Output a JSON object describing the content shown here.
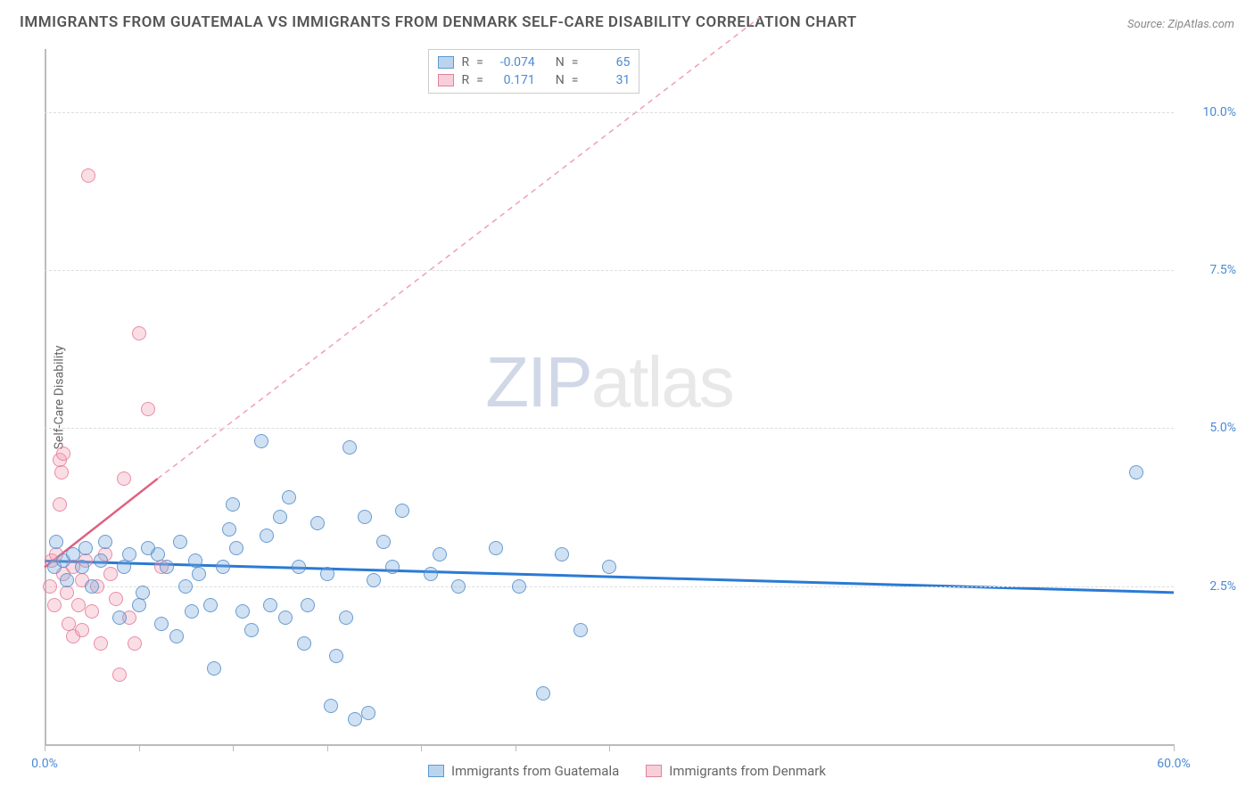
{
  "title": "IMMIGRANTS FROM GUATEMALA VS IMMIGRANTS FROM DENMARK SELF-CARE DISABILITY CORRELATION CHART",
  "source_label": "Source: ZipAtlas.com",
  "ylabel": "Self-Care Disability",
  "watermark_zip": "ZIP",
  "watermark_atlas": "atlas",
  "chart": {
    "type": "scatter",
    "xlim": [
      0,
      60
    ],
    "ylim": [
      0,
      11
    ],
    "ytick_values": [
      2.5,
      5.0,
      7.5,
      10.0
    ],
    "ytick_labels": [
      "2.5%",
      "5.0%",
      "7.5%",
      "10.0%"
    ],
    "xtick_positions": [
      0,
      5,
      10,
      15,
      20,
      25,
      30,
      60
    ],
    "xtick_labels": {
      "0": "0.0%",
      "60": "60.0%"
    },
    "background_color": "#ffffff",
    "grid_color": "#dddddd",
    "marker_size": 16
  },
  "series": {
    "guatemala": {
      "label": "Immigrants from Guatemala",
      "color_fill": "rgba(120,170,220,0.35)",
      "color_stroke": "#5a9ad4",
      "r_value": "-0.074",
      "n_value": "65",
      "trend": {
        "x1": 0,
        "y1": 2.9,
        "x2": 60,
        "y2": 2.4,
        "dashed": false,
        "color": "#2a7ad4",
        "width": 3
      },
      "points": [
        [
          0.5,
          2.8
        ],
        [
          0.6,
          3.2
        ],
        [
          1.0,
          2.9
        ],
        [
          1.2,
          2.6
        ],
        [
          1.5,
          3.0
        ],
        [
          2.0,
          2.8
        ],
        [
          2.2,
          3.1
        ],
        [
          2.5,
          2.5
        ],
        [
          3.0,
          2.9
        ],
        [
          3.2,
          3.2
        ],
        [
          4.0,
          2.0
        ],
        [
          4.2,
          2.8
        ],
        [
          5.0,
          2.2
        ],
        [
          5.5,
          3.1
        ],
        [
          6.0,
          3.0
        ],
        [
          6.5,
          2.8
        ],
        [
          7.0,
          1.7
        ],
        [
          7.2,
          3.2
        ],
        [
          7.8,
          2.1
        ],
        [
          8.0,
          2.9
        ],
        [
          8.2,
          2.7
        ],
        [
          8.8,
          2.2
        ],
        [
          9.0,
          1.2
        ],
        [
          9.5,
          2.8
        ],
        [
          10.0,
          3.8
        ],
        [
          10.2,
          3.1
        ],
        [
          10.5,
          2.1
        ],
        [
          11.0,
          1.8
        ],
        [
          11.5,
          4.8
        ],
        [
          12.0,
          2.2
        ],
        [
          12.5,
          3.6
        ],
        [
          12.8,
          2.0
        ],
        [
          13.0,
          3.9
        ],
        [
          13.5,
          2.8
        ],
        [
          14.0,
          2.2
        ],
        [
          14.5,
          3.5
        ],
        [
          15.0,
          2.7
        ],
        [
          15.2,
          0.6
        ],
        [
          15.5,
          1.4
        ],
        [
          16.0,
          2.0
        ],
        [
          16.2,
          4.7
        ],
        [
          16.5,
          0.4
        ],
        [
          17.0,
          3.6
        ],
        [
          17.2,
          0.5
        ],
        [
          17.5,
          2.6
        ],
        [
          18.0,
          3.2
        ],
        [
          18.5,
          2.8
        ],
        [
          19.0,
          3.7
        ],
        [
          20.5,
          2.7
        ],
        [
          21.0,
          3.0
        ],
        [
          22.0,
          2.5
        ],
        [
          24.0,
          3.1
        ],
        [
          25.2,
          2.5
        ],
        [
          26.5,
          0.8
        ],
        [
          27.5,
          3.0
        ],
        [
          28.5,
          1.8
        ],
        [
          30.0,
          2.8
        ],
        [
          58.0,
          4.3
        ],
        [
          5.2,
          2.4
        ],
        [
          6.2,
          1.9
        ],
        [
          9.8,
          3.4
        ],
        [
          11.8,
          3.3
        ],
        [
          13.8,
          1.6
        ],
        [
          7.5,
          2.5
        ],
        [
          4.5,
          3.0
        ]
      ]
    },
    "denmark": {
      "label": "Immigrants from Denmark",
      "color_fill": "rgba(240,160,180,0.35)",
      "color_stroke": "#e080a0",
      "r_value": "0.171",
      "n_value": "31",
      "trend_solid": {
        "x1": 0,
        "y1": 2.8,
        "x2": 6.0,
        "y2": 4.2,
        "color": "#e0607f",
        "width": 2.5
      },
      "trend_dashed": {
        "x1": 6.0,
        "y1": 4.2,
        "x2": 38,
        "y2": 11.5,
        "color": "#f0a0b0",
        "width": 1.5
      },
      "points": [
        [
          0.3,
          2.5
        ],
        [
          0.4,
          2.9
        ],
        [
          0.5,
          2.2
        ],
        [
          0.6,
          3.0
        ],
        [
          0.8,
          3.8
        ],
        [
          0.8,
          4.5
        ],
        [
          0.9,
          4.3
        ],
        [
          1.0,
          2.7
        ],
        [
          1.0,
          4.6
        ],
        [
          1.2,
          2.4
        ],
        [
          1.3,
          1.9
        ],
        [
          1.5,
          2.8
        ],
        [
          1.5,
          1.7
        ],
        [
          1.8,
          2.2
        ],
        [
          2.0,
          2.6
        ],
        [
          2.0,
          1.8
        ],
        [
          2.2,
          2.9
        ],
        [
          2.3,
          9.0
        ],
        [
          2.5,
          2.1
        ],
        [
          2.8,
          2.5
        ],
        [
          3.0,
          1.6
        ],
        [
          3.2,
          3.0
        ],
        [
          3.5,
          2.7
        ],
        [
          3.8,
          2.3
        ],
        [
          4.0,
          1.1
        ],
        [
          4.2,
          4.2
        ],
        [
          4.5,
          2.0
        ],
        [
          4.8,
          1.6
        ],
        [
          5.0,
          6.5
        ],
        [
          5.5,
          5.3
        ],
        [
          6.2,
          2.8
        ]
      ]
    }
  },
  "stats_legend": {
    "r_label": "R",
    "n_label": "N",
    "eq": "="
  }
}
